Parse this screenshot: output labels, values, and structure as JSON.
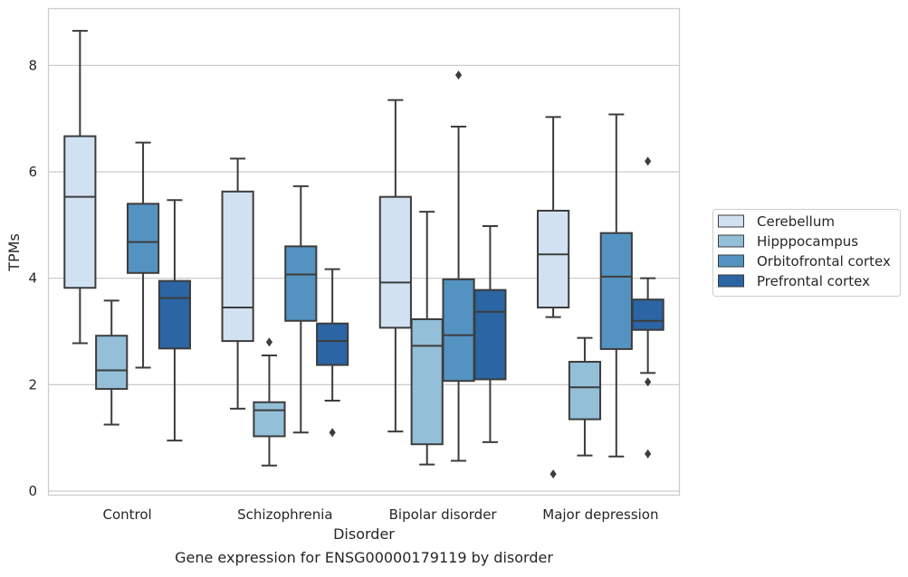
{
  "chart_data": {
    "type": "box",
    "title": "",
    "caption": "Gene expression for ENSG00000179119 by disorder",
    "xlabel": "Disorder",
    "ylabel": "TPMs",
    "ylim": [
      -0.1,
      9.1
    ],
    "yticks": [
      0,
      2,
      4,
      6,
      8
    ],
    "grid": true,
    "legend_position": "right",
    "categories": [
      "Control",
      "Schizophrenia",
      "Bipolar disorder",
      "Major depression"
    ],
    "series": [
      {
        "name": "Cerebellum",
        "color": "#d1e1f1",
        "boxes": [
          {
            "whisker_low": 2.78,
            "q1": 3.82,
            "median": 5.53,
            "q3": 6.67,
            "whisker_high": 8.65,
            "outliers": []
          },
          {
            "whisker_low": 1.55,
            "q1": 2.82,
            "median": 3.45,
            "q3": 5.63,
            "whisker_high": 6.25,
            "outliers": []
          },
          {
            "whisker_low": 1.12,
            "q1": 3.07,
            "median": 3.92,
            "q3": 5.53,
            "whisker_high": 7.35,
            "outliers": []
          },
          {
            "whisker_low": 3.27,
            "q1": 3.45,
            "median": 4.45,
            "q3": 5.27,
            "whisker_high": 7.03,
            "outliers": [
              0.32
            ]
          }
        ]
      },
      {
        "name": "Hipppocampus",
        "color": "#94bfd9",
        "boxes": [
          {
            "whisker_low": 1.25,
            "q1": 1.92,
            "median": 2.27,
            "q3": 2.92,
            "whisker_high": 3.58,
            "outliers": []
          },
          {
            "whisker_low": 0.48,
            "q1": 1.03,
            "median": 1.52,
            "q3": 1.67,
            "whisker_high": 2.55,
            "outliers": [
              2.8
            ]
          },
          {
            "whisker_low": 0.5,
            "q1": 0.88,
            "median": 2.73,
            "q3": 3.23,
            "whisker_high": 5.25,
            "outliers": []
          },
          {
            "whisker_low": 0.67,
            "q1": 1.35,
            "median": 1.95,
            "q3": 2.43,
            "whisker_high": 2.88,
            "outliers": []
          }
        ]
      },
      {
        "name": "Orbitofrontal cortex",
        "color": "#5493c1",
        "boxes": [
          {
            "whisker_low": 2.32,
            "q1": 4.1,
            "median": 4.68,
            "q3": 5.4,
            "whisker_high": 6.55,
            "outliers": []
          },
          {
            "whisker_low": 1.1,
            "q1": 3.2,
            "median": 4.07,
            "q3": 4.6,
            "whisker_high": 5.73,
            "outliers": []
          },
          {
            "whisker_low": 0.57,
            "q1": 2.07,
            "median": 2.93,
            "q3": 3.98,
            "whisker_high": 6.85,
            "outliers": [
              7.82
            ]
          },
          {
            "whisker_low": 0.65,
            "q1": 2.67,
            "median": 4.03,
            "q3": 4.85,
            "whisker_high": 7.08,
            "outliers": []
          }
        ]
      },
      {
        "name": "Prefrontal cortex",
        "color": "#2b65a3",
        "boxes": [
          {
            "whisker_low": 0.95,
            "q1": 2.68,
            "median": 3.63,
            "q3": 3.95,
            "whisker_high": 5.47,
            "outliers": []
          },
          {
            "whisker_low": 1.7,
            "q1": 2.37,
            "median": 2.82,
            "q3": 3.15,
            "whisker_high": 4.17,
            "outliers": [
              1.1
            ]
          },
          {
            "whisker_low": 0.92,
            "q1": 2.1,
            "median": 3.37,
            "q3": 3.78,
            "whisker_high": 4.98,
            "outliers": []
          },
          {
            "whisker_low": 2.22,
            "q1": 3.03,
            "median": 3.2,
            "q3": 3.6,
            "whisker_high": 4.0,
            "outliers": [
              6.2,
              2.05,
              0.7
            ]
          }
        ]
      }
    ]
  },
  "colors": {
    "grid": "#cccccc",
    "frame": "#cccccc",
    "box_line": "#3c3c3c",
    "text": "#262626"
  }
}
